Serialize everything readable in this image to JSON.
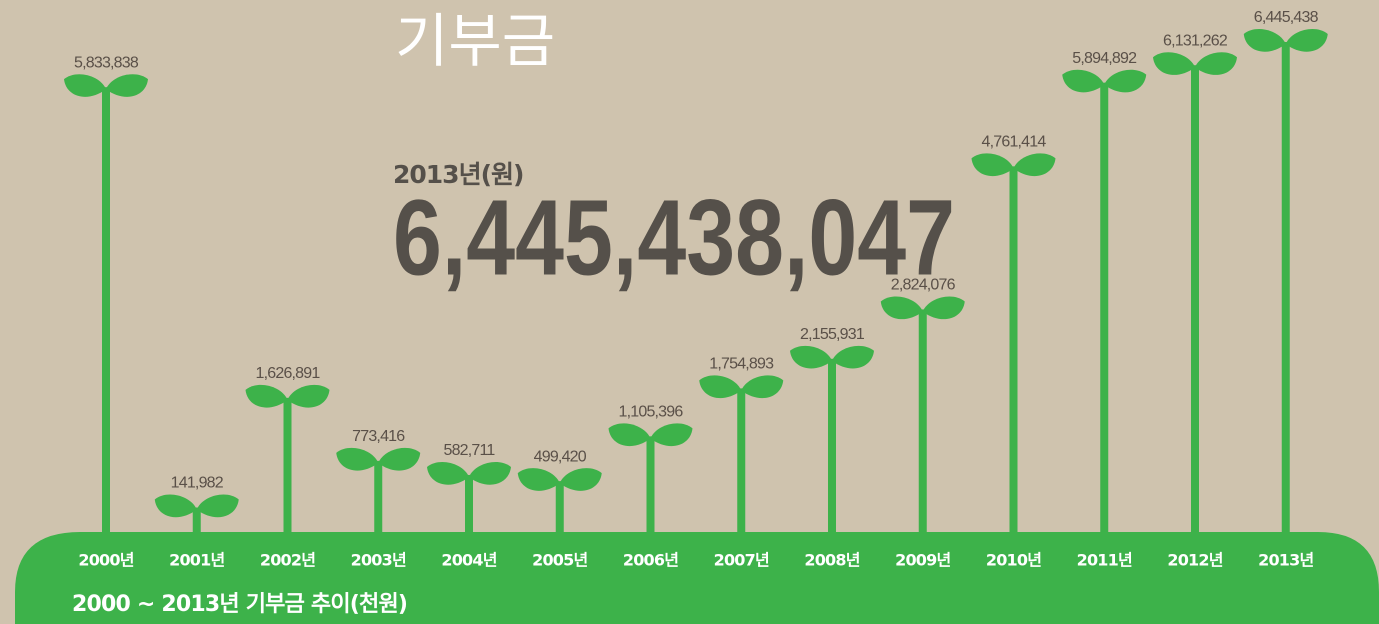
{
  "chart_data": {
    "type": "bar",
    "title": "기부금",
    "subtitle": "2013년(원)",
    "total": {
      "value": 6445438047,
      "label": "6,445,438,047"
    },
    "x_label": "2000 ~ 2013년 기부금 추이(천원)",
    "categories": [
      "2000년",
      "2001년",
      "2002년",
      "2003년",
      "2004년",
      "2005년",
      "2006년",
      "2007년",
      "2008년",
      "2009년",
      "2010년",
      "2011년",
      "2012년",
      "2013년"
    ],
    "values": [
      5833838,
      141982,
      1626891,
      773416,
      582711,
      499420,
      1105396,
      1754893,
      2155931,
      2824076,
      4761414,
      5894892,
      6131262,
      6445438
    ],
    "value_labels": [
      "5,833,838",
      "141,982",
      "1,626,891",
      "773,416",
      "582,711",
      "499,420",
      "1,105,396",
      "1,754,893",
      "2,155,931",
      "2,824,076",
      "4,761,414",
      "5,894,892",
      "6,131,262",
      "6,445,438"
    ],
    "color": "#3db24a"
  }
}
